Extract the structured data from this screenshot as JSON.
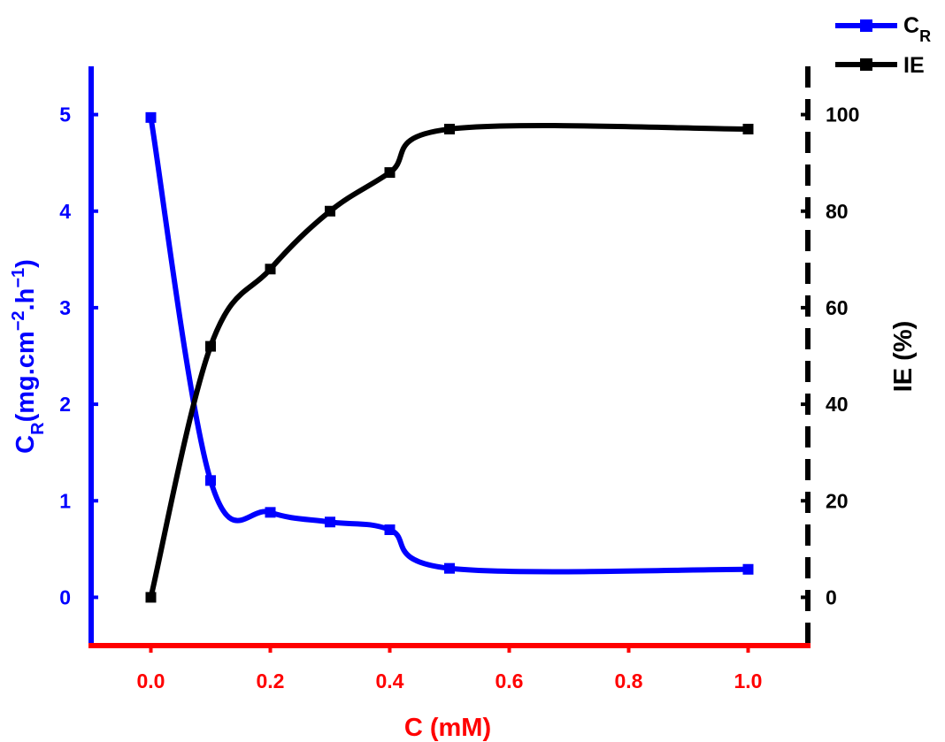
{
  "chart_data": {
    "type": "line",
    "title": "",
    "xlabel": "C (mM)",
    "x": [
      0.0,
      0.1,
      0.2,
      0.3,
      0.4,
      0.5,
      1.0
    ],
    "xlim": [
      -0.1,
      1.1
    ],
    "xticks": [
      "0.0",
      "0.2",
      "0.4",
      "0.6",
      "0.8",
      "1.0"
    ],
    "y_left": {
      "label_main": "C",
      "label_sub": "R",
      "label_rest": "(mg.cm",
      "label_sup1": "−2",
      "label_mid": ".h",
      "label_sup2": "−1",
      "label_close": ")",
      "ylim": [
        -0.5,
        5.5
      ],
      "ticks": [
        "0",
        "1",
        "2",
        "3",
        "4",
        "5"
      ]
    },
    "y_right": {
      "label": "IE (%)",
      "ylim": [
        -10,
        110
      ],
      "ticks": [
        "0",
        "20",
        "40",
        "60",
        "80",
        "100"
      ]
    },
    "series": [
      {
        "name": "C",
        "name_sub": "R",
        "axis": "left",
        "color": "#0000ff",
        "values": [
          4.97,
          1.21,
          0.88,
          0.78,
          0.7,
          0.3,
          0.29
        ]
      },
      {
        "name": "IE",
        "axis": "right",
        "color": "#000000",
        "values": [
          0,
          52,
          68,
          80,
          88,
          97,
          97
        ]
      }
    ],
    "legend": "top-right",
    "grid": false,
    "colors": {
      "x_axis": "#ff0000",
      "left_axis": "#0000ff",
      "right_axis": "#000000"
    }
  }
}
